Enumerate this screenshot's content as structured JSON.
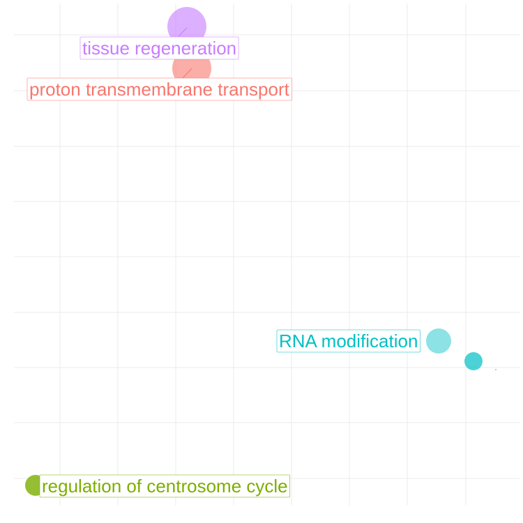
{
  "chart_data": {
    "type": "scatter",
    "title": "",
    "xlabel": "",
    "ylabel": "",
    "grid": true,
    "legend": "none",
    "series": [
      {
        "label": "tissue regeneration",
        "color": "#c77cff",
        "x": 3.2,
        "y": 8.6,
        "size": 1.0,
        "labeled": true
      },
      {
        "label": "proton transmembrane transport",
        "color": "#f8766d",
        "x": 3.3,
        "y": 7.9,
        "size": 1.0,
        "labeled": true
      },
      {
        "label": "RNA modification",
        "color": "#00bfc4",
        "x": 7.5,
        "y": 2.6,
        "size": 0.7,
        "labeled": true,
        "alpha": 0.45
      },
      {
        "label": "",
        "color": "#00bfc4",
        "x": 8.1,
        "y": 2.25,
        "size": 0.5,
        "labeled": false,
        "alpha": 0.7
      },
      {
        "label": "",
        "color": "#7cae00",
        "x": 0.55,
        "y": -0.15,
        "size": 0.6,
        "labeled": true,
        "alpha": 0.8,
        "ref": 0
      }
    ],
    "labels": [
      {
        "text": "tissue regeneration",
        "color": "#c77cff"
      },
      {
        "text": "proton transmembrane transport",
        "color": "#f8766d"
      },
      {
        "text": "RNA modification",
        "color": "#00bfc4"
      },
      {
        "text": "regulation of centrosome cycle",
        "color": "#7cae00"
      }
    ],
    "xlim": [
      0,
      8.5
    ],
    "ylim": [
      -0.3,
      8.8
    ]
  }
}
